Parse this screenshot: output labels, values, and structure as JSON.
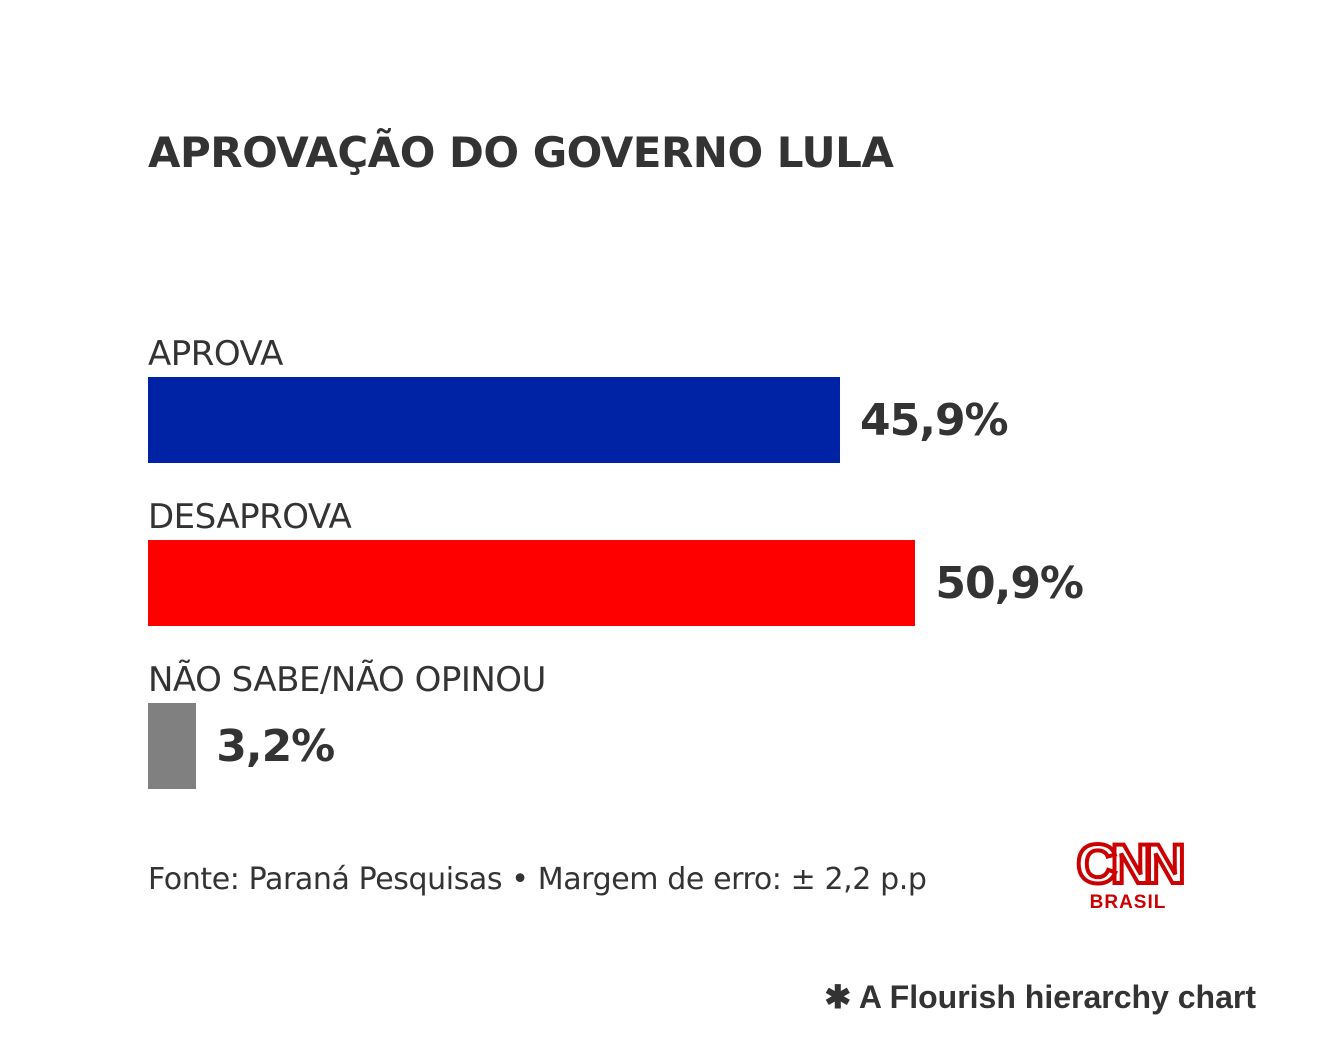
{
  "chart_data": {
    "type": "bar",
    "orientation": "horizontal",
    "title": "APROVAÇÃO DO GOVERNO LULA",
    "categories": [
      "APROVA",
      "DESAPROVA",
      "NÃO SABE/NÃO OPINOU"
    ],
    "values": [
      45.9,
      50.9,
      3.2
    ],
    "value_labels": [
      "45,9%",
      "50,9%",
      "3,2%"
    ],
    "colors": [
      "#0022a5",
      "#ff0000",
      "#808080"
    ],
    "xlim": [
      0,
      100
    ],
    "grid": false
  },
  "source": "Fonte: Paraná Pesquisas • Margem de erro: ± 2,2 p.p",
  "logo": {
    "name": "CNN",
    "sub": "BRASIL"
  },
  "footer": {
    "label": "A Flourish hierarchy chart",
    "icon": "flourish-asterisk-icon"
  }
}
